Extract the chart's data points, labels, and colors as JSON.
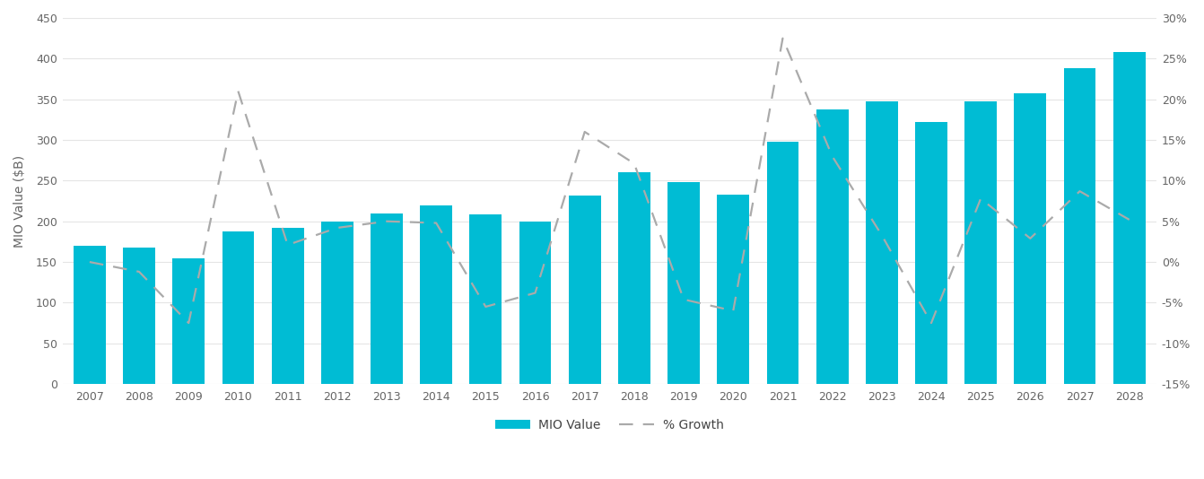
{
  "years": [
    2007,
    2008,
    2009,
    2010,
    2011,
    2012,
    2013,
    2014,
    2015,
    2016,
    2017,
    2018,
    2019,
    2020,
    2021,
    2022,
    2023,
    2024,
    2025,
    2026,
    2027,
    2028
  ],
  "mio_values": [
    170,
    168,
    155,
    188,
    192,
    200,
    210,
    220,
    208,
    200,
    232,
    260,
    248,
    233,
    298,
    337,
    348,
    322,
    347,
    357,
    388,
    408
  ],
  "pct_growth": [
    0.0,
    -1.2,
    -7.5,
    21.0,
    2.1,
    4.2,
    5.0,
    4.8,
    -5.5,
    -3.8,
    16.0,
    12.1,
    -4.6,
    -6.0,
    27.5,
    13.0,
    3.3,
    -7.5,
    7.8,
    2.9,
    8.7,
    5.2
  ],
  "bar_color": "#00BCD4",
  "line_color": "#AAAAAA",
  "ylim_left": [
    0,
    450
  ],
  "ylim_right": [
    -15,
    30
  ],
  "ylabel_left": "MIO Value ($B)",
  "yticks_left": [
    0,
    50,
    100,
    150,
    200,
    250,
    300,
    350,
    400,
    450
  ],
  "yticks_right": [
    -15,
    -10,
    -5,
    0,
    5,
    10,
    15,
    20,
    25,
    30
  ],
  "ytick_right_labels": [
    "-15%",
    "-10%",
    "-5%",
    "0%",
    "5%",
    "10%",
    "15%",
    "20%",
    "25%",
    "30%"
  ],
  "legend_labels": [
    "MIO Value",
    "% Growth"
  ],
  "background_color": "#FFFFFF",
  "grid_color": "#E5E5E5"
}
